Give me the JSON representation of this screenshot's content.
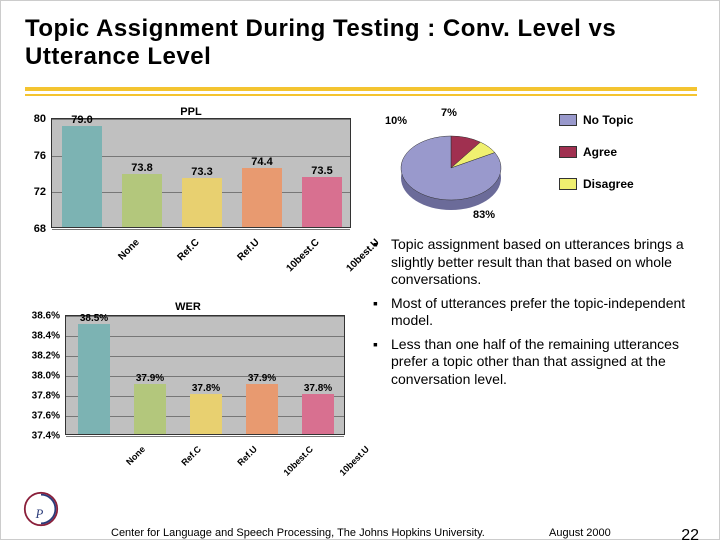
{
  "title": "Topic Assignment During Testing : Conv. Level vs Utterance Level",
  "ppl_chart": {
    "type": "bar",
    "title": "PPL",
    "categories": [
      "None",
      "Ref.C",
      "Ref.U",
      "10best.C",
      "10best.U"
    ],
    "values": [
      79.0,
      73.8,
      73.3,
      74.4,
      73.5
    ],
    "value_labels": [
      "79.0",
      "73.8",
      "73.3",
      "74.4",
      "73.5"
    ],
    "bar_colors": [
      "#7cb3b3",
      "#b3c77c",
      "#e8d070",
      "#e89a70",
      "#d87090"
    ],
    "yticks": [
      68,
      72,
      76,
      80
    ],
    "ymin": 68,
    "ymax": 80,
    "plot_bg": "#c0c0c0",
    "title_fontsize": 11,
    "label_fontsize": 11
  },
  "wer_chart": {
    "type": "bar",
    "title": "WER",
    "categories": [
      "None",
      "Ref.C",
      "Ref.U",
      "10best.C",
      "10best.U"
    ],
    "values": [
      38.5,
      37.9,
      37.8,
      37.9,
      37.8
    ],
    "value_labels": [
      "38.5%",
      "37.9%",
      "37.8%",
      "37.9%",
      "37.8%"
    ],
    "bar_colors": [
      "#7cb3b3",
      "#b3c77c",
      "#e8d070",
      "#e89a70",
      "#d87090"
    ],
    "yticks": [
      37.4,
      37.6,
      37.8,
      38.0,
      38.2,
      38.4,
      38.6
    ],
    "ytick_labels": [
      "37.4%",
      "37.6%",
      "37.8%",
      "38.0%",
      "38.2%",
      "38.4%",
      "38.6%"
    ],
    "ymin": 37.4,
    "ymax": 38.6,
    "plot_bg": "#c0c0c0",
    "title_fontsize": 11,
    "label_fontsize": 10
  },
  "pie_chart": {
    "type": "pie",
    "slices": [
      {
        "label": "No Topic",
        "value": 83,
        "color": "#9999cc",
        "display": "83%"
      },
      {
        "label": "Agree",
        "value": 10,
        "color": "#a03050",
        "display": "10%"
      },
      {
        "label": "Disagree",
        "value": 7,
        "color": "#f0f070",
        "display": "7%"
      }
    ],
    "label_fontsize": 11
  },
  "legend": {
    "items": [
      {
        "swatch": "#9999cc",
        "label": "No Topic"
      },
      {
        "swatch": "#a03050",
        "label": "Agree"
      },
      {
        "swatch": "#f0f070",
        "label": "Disagree"
      }
    ]
  },
  "bullets": [
    "Topic assignment based on utterances brings a slightly better result than that based on whole conversations.",
    "Most of utterances prefer the topic-independent model.",
    "Less than one half of the remaining utterances prefer a topic other than that assigned at the conversation level."
  ],
  "footer": {
    "center": "Center for Language and Speech Processing, The Johns Hopkins University.",
    "date": "August 2000",
    "page": "22"
  },
  "accent_rule_color": "#f4c430"
}
